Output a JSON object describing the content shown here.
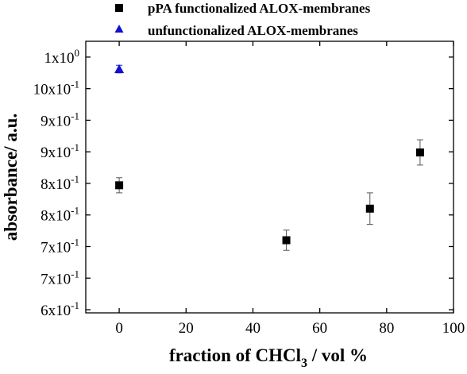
{
  "chart_data": {
    "type": "scatter",
    "title": "",
    "xlabel": "fraction of CHCl",
    "xlabel_sub": "3",
    "xlabel_tail": " / vol %",
    "ylabel": "absorbance/ a.u.",
    "xlim": [
      -10,
      100
    ],
    "ylim": [
      0.595,
      1.025
    ],
    "x_ticks": [
      0,
      20,
      40,
      60,
      80,
      100
    ],
    "x_tick_labels": [
      "0",
      "20",
      "40",
      "60",
      "80",
      "100"
    ],
    "y_ticks": [
      {
        "value": 1.0,
        "mantissa": "1x10",
        "exp": "0"
      },
      {
        "value": 0.95,
        "mantissa": "10x10",
        "exp": "-1"
      },
      {
        "value": 0.9,
        "mantissa": "9x10",
        "exp": "-1"
      },
      {
        "value": 0.85,
        "mantissa": "9x10",
        "exp": "-1"
      },
      {
        "value": 0.8,
        "mantissa": "8x10",
        "exp": "-1"
      },
      {
        "value": 0.75,
        "mantissa": "8x10",
        "exp": "-1"
      },
      {
        "value": 0.7,
        "mantissa": "7x10",
        "exp": "-1"
      },
      {
        "value": 0.65,
        "mantissa": "7x10",
        "exp": "-1"
      },
      {
        "value": 0.6,
        "mantissa": "6x10",
        "exp": "-1"
      }
    ],
    "legend_position": "top-center, above plot",
    "series": [
      {
        "name": "pPA functionalized ALOX-membranes",
        "marker": "square",
        "color": "#000000",
        "points": [
          {
            "x": 0,
            "y": 0.797,
            "err": 0.012
          },
          {
            "x": 50,
            "y": 0.71,
            "err": 0.016
          },
          {
            "x": 75,
            "y": 0.76,
            "err": 0.025
          },
          {
            "x": 90,
            "y": 0.849,
            "err": 0.02
          }
        ]
      },
      {
        "name": "unfunctionalized ALOX-membranes",
        "marker": "triangle",
        "color": "#1010d0",
        "points": [
          {
            "x": 0,
            "y": 0.981,
            "err": 0.006
          }
        ]
      }
    ]
  }
}
